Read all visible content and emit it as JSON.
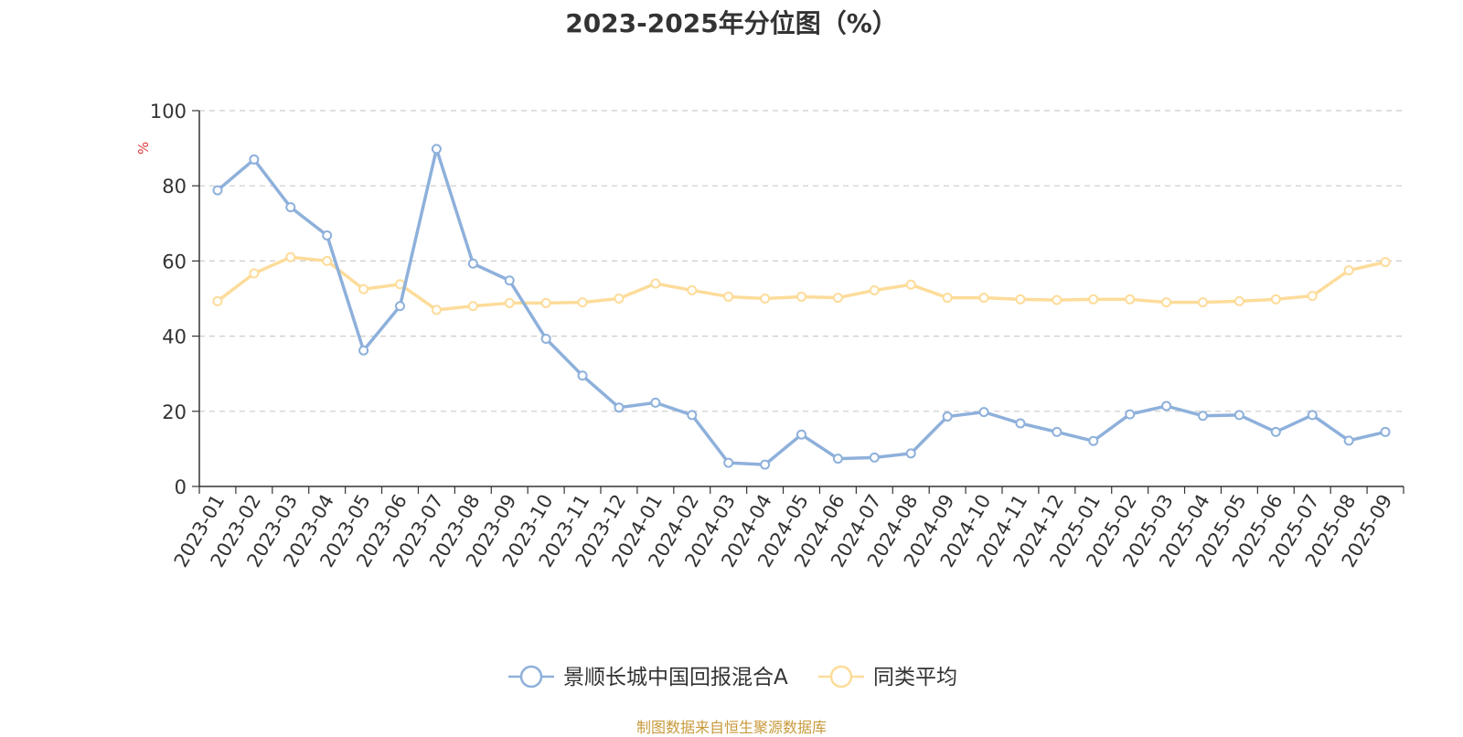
{
  "source_note": "制图数据来自恒生聚源数据库",
  "colors": {
    "fund": "#8eb0db",
    "avg": "#fddc9a",
    "unit_label": "#e23a3a",
    "grid": "#cccccc",
    "axis": "#333333"
  },
  "chart_data": {
    "type": "line",
    "title": "2023-2025年分位图（%）",
    "ylabel": "%",
    "ylim": [
      0,
      100
    ],
    "yticks": [
      "0",
      "20",
      "40",
      "60",
      "80",
      "100"
    ],
    "grid": true,
    "legend_position": "bottom-center",
    "categories": [
      "2023-01",
      "2023-02",
      "2023-03",
      "2023-04",
      "2023-05",
      "2023-06",
      "2023-07",
      "2023-08",
      "2023-09",
      "2023-10",
      "2023-11",
      "2023-12",
      "2024-01",
      "2024-02",
      "2024-03",
      "2024-04",
      "2024-05",
      "2024-06",
      "2024-07",
      "2024-08",
      "2024-09",
      "2024-10",
      "2024-11",
      "2024-12",
      "2025-01",
      "2025-02",
      "2025-03",
      "2025-04",
      "2025-05",
      "2025-06",
      "2025-07",
      "2025-08",
      "2025-09"
    ],
    "series": [
      {
        "name": "景顺长城中国回报混合A",
        "values": [
          78.8,
          87.0,
          74.3,
          66.8,
          36.2,
          48.0,
          89.8,
          59.3,
          54.8,
          39.3,
          29.5,
          21.0,
          22.3,
          19.0,
          6.3,
          5.8,
          13.8,
          7.4,
          7.7,
          8.8,
          18.6,
          19.8,
          16.8,
          14.5,
          12.1,
          19.2,
          21.4,
          18.8,
          19.0,
          14.5,
          19.0,
          12.2,
          14.5
        ]
      },
      {
        "name": "同类平均",
        "values": [
          49.3,
          56.7,
          61.0,
          60.0,
          52.5,
          53.8,
          47.0,
          48.0,
          48.8,
          48.8,
          49.0,
          50.0,
          54.0,
          52.2,
          50.5,
          50.0,
          50.5,
          50.2,
          52.2,
          53.7,
          50.2,
          50.2,
          49.8,
          49.6,
          49.8,
          49.8,
          49.0,
          49.0,
          49.3,
          49.8,
          50.7,
          57.5,
          59.7
        ]
      }
    ]
  }
}
